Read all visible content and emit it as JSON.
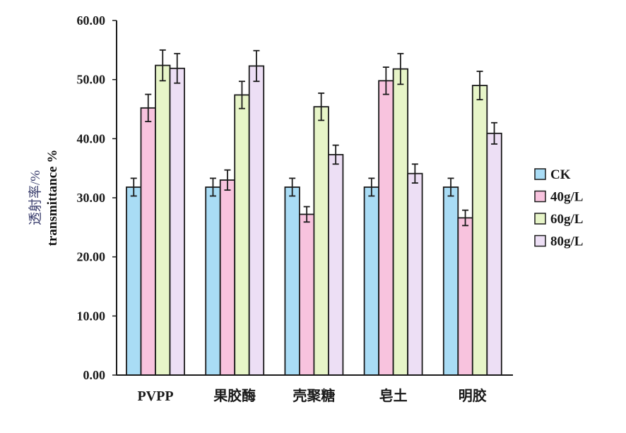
{
  "chart_data": {
    "type": "bar",
    "ylabel_cn": "透射率/%",
    "ylabel_en": "transmittance %",
    "ylim": [
      0,
      60
    ],
    "yticks": [
      "0.00",
      "10.00",
      "20.00",
      "30.00",
      "40.00",
      "50.00",
      "60.00"
    ],
    "categories": [
      "PVPP",
      "果胶酶",
      "壳聚糖",
      "皂土",
      "明胶"
    ],
    "series": [
      {
        "name": "CK",
        "color": "#a9dcf5",
        "values": [
          31.8,
          31.8,
          31.8,
          31.8,
          31.8
        ],
        "errors": [
          1.5,
          1.5,
          1.5,
          1.5,
          1.5
        ]
      },
      {
        "name": "40g/L",
        "color": "#f8c3de",
        "values": [
          45.2,
          33.0,
          27.2,
          49.8,
          26.6
        ],
        "errors": [
          2.3,
          1.7,
          1.3,
          2.3,
          1.3
        ]
      },
      {
        "name": "60g/L",
        "color": "#e7f5c8",
        "values": [
          52.4,
          47.4,
          45.4,
          51.8,
          49.0
        ],
        "errors": [
          2.6,
          2.3,
          2.3,
          2.6,
          2.4
        ]
      },
      {
        "name": "80g/L",
        "color": "#eddff5",
        "values": [
          51.9,
          52.3,
          37.3,
          34.1,
          40.9
        ],
        "errors": [
          2.5,
          2.6,
          1.6,
          1.6,
          1.8
        ]
      }
    ],
    "legend_position": "right",
    "grid": false
  }
}
